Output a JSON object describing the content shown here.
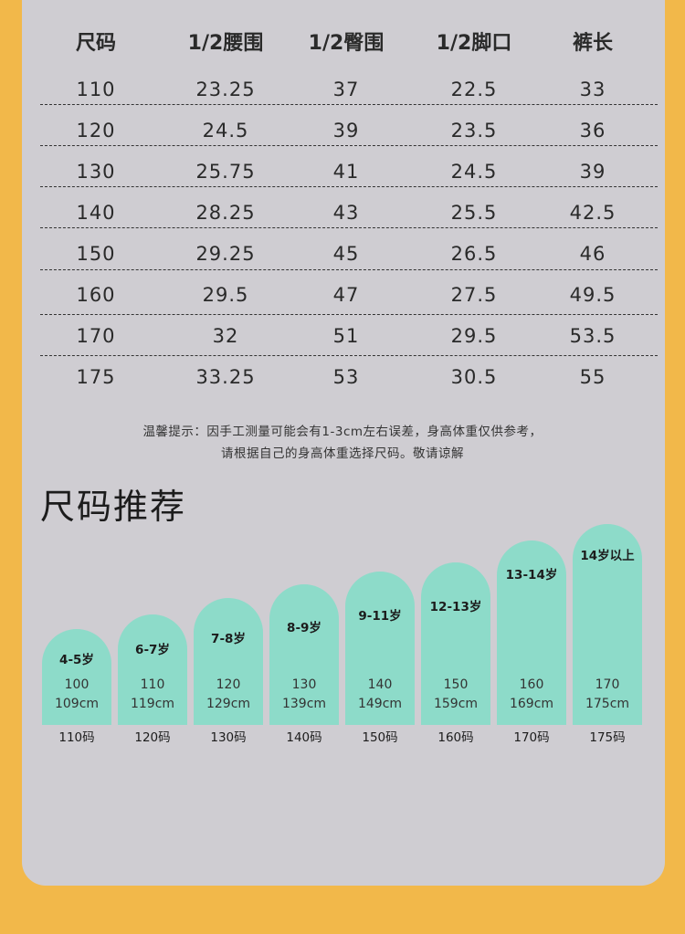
{
  "size_table": {
    "headers": [
      "尺码",
      "1/2腰围",
      "1/2臀围",
      "1/2脚口",
      "裤长"
    ],
    "rows": [
      [
        "110",
        "23.25",
        "37",
        "22.5",
        "33"
      ],
      [
        "120",
        "24.5",
        "39",
        "23.5",
        "36"
      ],
      [
        "130",
        "25.75",
        "41",
        "24.5",
        "39"
      ],
      [
        "140",
        "28.25",
        "43",
        "25.5",
        "42.5"
      ],
      [
        "150",
        "29.25",
        "45",
        "26.5",
        "46"
      ],
      [
        "160",
        "29.5",
        "47",
        "27.5",
        "49.5"
      ],
      [
        "170",
        "32",
        "51",
        "29.5",
        "53.5"
      ],
      [
        "175",
        "33.25",
        "53",
        "30.5",
        "55"
      ]
    ]
  },
  "notice": {
    "line1": "温馨提示：因手工测量可能会有1-3cm左右误差，身高体重仅供参考，",
    "line2": "请根据自己的身高体重选择尺码。敬请谅解"
  },
  "recommend": {
    "title": "尺码推荐",
    "cards": [
      {
        "age": "4-5岁",
        "height_from": "100",
        "height_to": "109cm",
        "size": "110码"
      },
      {
        "age": "6-7岁",
        "height_from": "110",
        "height_to": "119cm",
        "size": "120码"
      },
      {
        "age": "7-8岁",
        "height_from": "120",
        "height_to": "129cm",
        "size": "130码"
      },
      {
        "age": "8-9岁",
        "height_from": "130",
        "height_to": "139cm",
        "size": "140码"
      },
      {
        "age": "9-11岁",
        "height_from": "140",
        "height_to": "149cm",
        "size": "150码"
      },
      {
        "age": "12-13岁",
        "height_from": "150",
        "height_to": "159cm",
        "size": "160码"
      },
      {
        "age": "13-14岁",
        "height_from": "160",
        "height_to": "169cm",
        "size": "170码"
      },
      {
        "age": "14岁以上",
        "height_from": "170",
        "height_to": "175cm",
        "size": "175码"
      }
    ]
  },
  "colors": {
    "background": "#f2b84a",
    "panel": "#cfcdd2",
    "card": "#8ddbc9"
  }
}
